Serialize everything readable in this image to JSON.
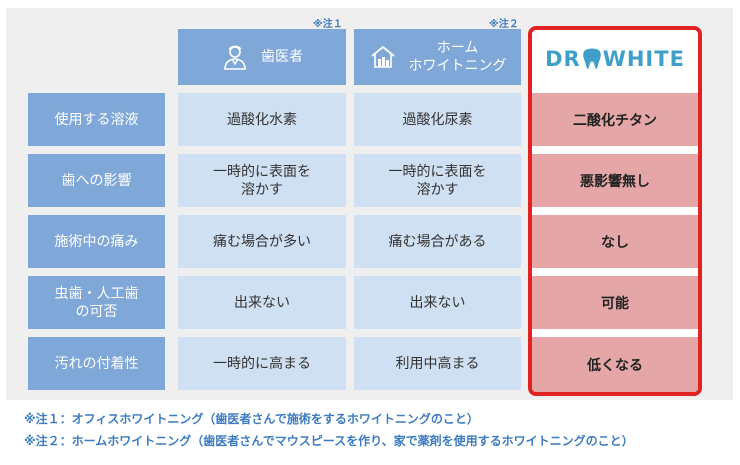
{
  "header": {
    "notes": [
      "※注１",
      "※注２"
    ],
    "columns": [
      {
        "label": "歯医者",
        "icon": "dentist-icon"
      },
      {
        "label": "ホーム\nホワイトニング",
        "icon": "house-icon"
      },
      {
        "brand_prefix": "DR",
        "brand_suffix": "WHITE",
        "icon": "tooth-icon"
      }
    ]
  },
  "rows": [
    {
      "label": "使用する溶液",
      "dentist": "過酸化水素",
      "home": "過酸化尿素",
      "drwhite": "二酸化チタン"
    },
    {
      "label": "歯への影響",
      "dentist": "一時的に表面を\n溶かす",
      "home": "一時的に表面を\n溶かす",
      "drwhite": "悪影響無し"
    },
    {
      "label": "施術中の痛み",
      "dentist": "痛む場合が多い",
      "home": "痛む場合がある",
      "drwhite": "なし"
    },
    {
      "label": "虫歯・人工歯\nの可否",
      "dentist": "出来ない",
      "home": "出来ない",
      "drwhite": "可能"
    },
    {
      "label": "汚れの付着性",
      "dentist": "一時的に高まる",
      "home": "利用中高まる",
      "drwhite": "低くなる"
    }
  ],
  "footnotes": [
    "※注１：オフィスホワイトニング（歯医者さんで施術をするホワイトニングのこと）",
    "※注２：ホームホワイトニング（歯医者さんでマウスピースを作り、家で薬剤を使用するホワイトニングのこと）"
  ],
  "colors": {
    "header_blue": "#7fa8d9",
    "cell_blue": "#cfe0f2",
    "highlight_red": "#e02222",
    "highlight_pink": "#e4a6a6",
    "brand_teal": "#3f9fc8",
    "note_blue": "#3d7cc0"
  }
}
